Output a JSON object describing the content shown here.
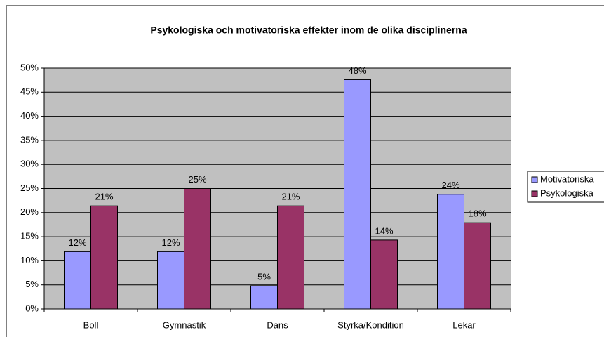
{
  "chart_data": {
    "type": "bar",
    "title": "Psykologiska och motivatoriska effekter inom de olika disciplinerna",
    "categories": [
      "Boll",
      "Gymnastik",
      "Dans",
      "Styrka/Kondition",
      "Lekar"
    ],
    "series": [
      {
        "name": "Motivatoriska",
        "color": "#9999ff",
        "values": [
          11.9,
          11.9,
          4.8,
          47.6,
          23.8
        ],
        "value_labels": [
          "12%",
          "12%",
          "5%",
          "48%",
          "24%"
        ]
      },
      {
        "name": "Psykologiska",
        "color": "#993366",
        "values": [
          21.4,
          25,
          21.4,
          14.3,
          17.9
        ],
        "value_labels": [
          "21%",
          "25%",
          "21%",
          "14%",
          "18%"
        ]
      }
    ],
    "ylim": [
      0,
      50
    ],
    "yticks": [
      {
        "value": 0,
        "label": "0%"
      },
      {
        "value": 5,
        "label": "5%"
      },
      {
        "value": 10,
        "label": "10%"
      },
      {
        "value": 15,
        "label": "15%"
      },
      {
        "value": 20,
        "label": "20%"
      },
      {
        "value": 25,
        "label": "25%"
      },
      {
        "value": 30,
        "label": "30%"
      },
      {
        "value": 35,
        "label": "35%"
      },
      {
        "value": 40,
        "label": "40%"
      },
      {
        "value": 45,
        "label": "45%"
      },
      {
        "value": 50,
        "label": "50%"
      }
    ],
    "grid": true,
    "legend": "right"
  }
}
